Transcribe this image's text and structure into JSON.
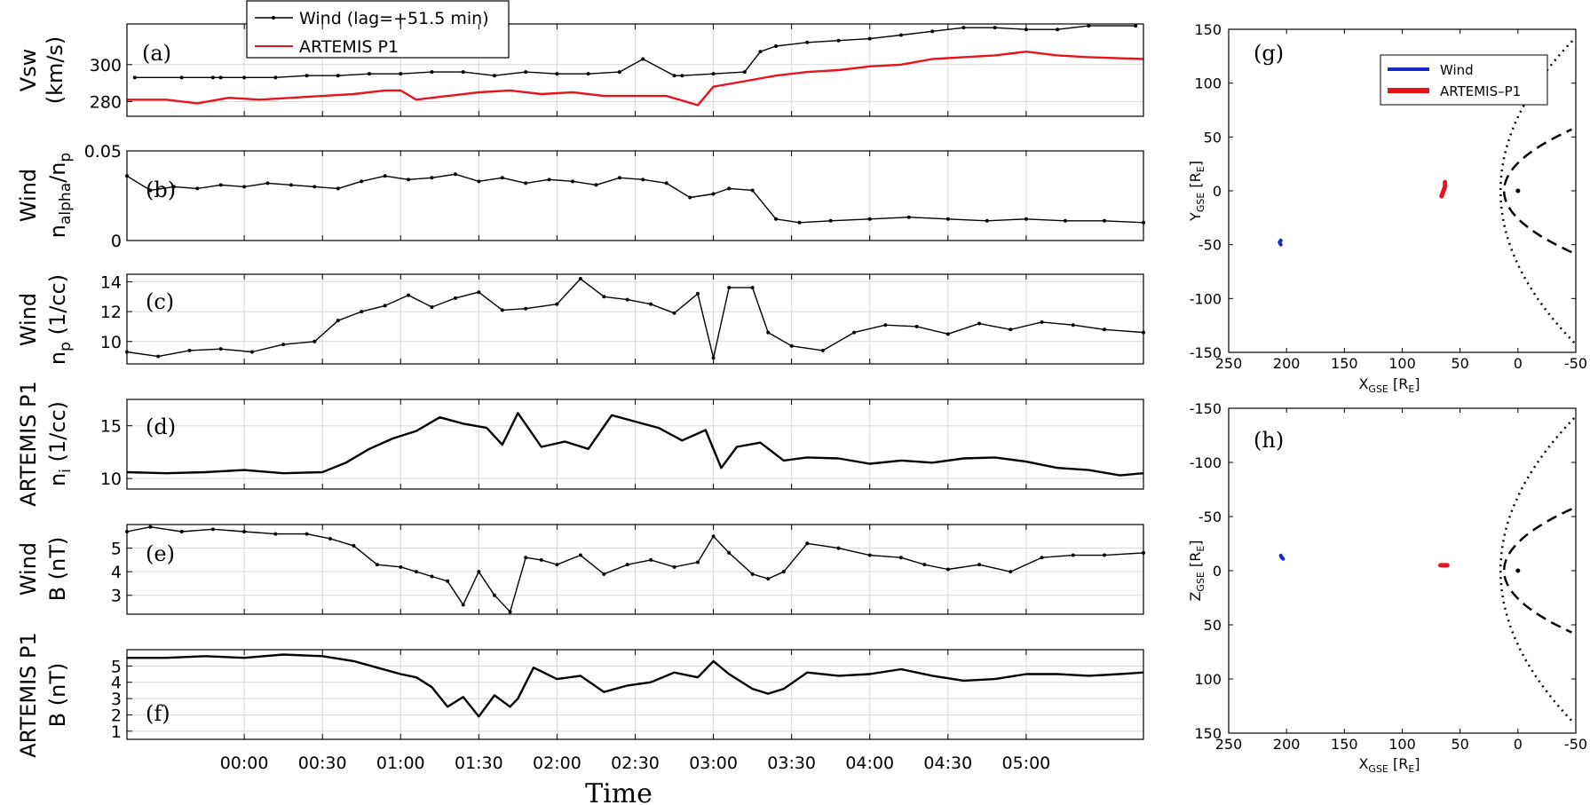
{
  "colors": {
    "wind": "#000000",
    "artemis": "#e8141c",
    "wind_orbit": "#1428c8",
    "artemis_orbit": "#e8141c"
  },
  "legend": {
    "wind": "Wind (lag=+51.5 min)",
    "artemis": "ARTEMIS P1"
  },
  "xlabel": "Time",
  "time_ticks": [
    "00:00",
    "00:30",
    "01:00",
    "01:30",
    "02:00",
    "02:30",
    "03:00",
    "03:30",
    "04:00",
    "04:30",
    "05:00"
  ],
  "panels": {
    "a": {
      "tag": "(a)",
      "ylabel_line1": "Vsw",
      "ylabel_line2": "(km/s)",
      "ticks": [
        "280",
        "300"
      ]
    },
    "b": {
      "tag": "(b)",
      "ylabel_line1": "Wind",
      "ylabel_line2": "n",
      "ylabel_sub1": "alpha",
      "ylabel_mid": "/n",
      "ylabel_sub2": "p",
      "ticks": [
        "0",
        "0.05"
      ]
    },
    "c": {
      "tag": "(c)",
      "ylabel_line1": "Wind",
      "ylabel_line2": "n",
      "ylabel_sub": "p",
      "ylabel_unit": " (1/cc)",
      "ticks": [
        "10",
        "12",
        "14"
      ]
    },
    "d": {
      "tag": "(d)",
      "ylabel_line1": "ARTEMIS P1",
      "ylabel_line2": "n",
      "ylabel_sub": "i",
      "ylabel_unit": " (1/cc)",
      "ticks": [
        "10",
        "15"
      ]
    },
    "e": {
      "tag": "(e)",
      "ylabel_line1": "Wind",
      "ylabel_line2": "B (nT)",
      "ticks": [
        "3",
        "4",
        "5"
      ]
    },
    "f": {
      "tag": "(f)",
      "ylabel_line1": "ARTEMIS P1",
      "ylabel_line2": "B (nT)",
      "ticks": [
        "1",
        "2",
        "3",
        "4",
        "5"
      ]
    },
    "g": {
      "tag": "(g)",
      "xticks": [
        "250",
        "200",
        "150",
        "100",
        "50",
        "0",
        "-50"
      ],
      "yticks": [
        "-150",
        "-100",
        "-50",
        "0",
        "50",
        "100",
        "150"
      ],
      "xlabel_main": "X",
      "xlabel_sub": "GSE",
      "xlabel_unit": " [R",
      "xlabel_unit_sub": "E",
      "xlabel_close": "]",
      "ylabel_main": "Y",
      "ylabel_sub": "GSE",
      "ylabel_unit": " [R",
      "ylabel_unit_sub": "E",
      "ylabel_close": "]",
      "legend_wind": "Wind",
      "legend_artemis": "ARTEMIS–P1"
    },
    "h": {
      "tag": "(h)",
      "xticks": [
        "250",
        "200",
        "150",
        "100",
        "50",
        "0",
        "-50"
      ],
      "yticks": [
        "150",
        "100",
        "50",
        "0",
        "-50",
        "-100",
        "-150"
      ],
      "xlabel_main": "X",
      "xlabel_sub": "GSE",
      "xlabel_unit": " [R",
      "xlabel_unit_sub": "E",
      "xlabel_close": "]",
      "ylabel_main": "Z",
      "ylabel_sub": "GSE",
      "ylabel_unit": " [R",
      "ylabel_unit_sub": "E",
      "ylabel_close": "]"
    }
  },
  "chart_data": [
    {
      "type": "line",
      "panel": "a",
      "ylim": [
        272,
        322
      ],
      "xlim": [
        -0.75,
        5.75
      ],
      "series": [
        {
          "name": "Wind (lag=+51.5 min)",
          "x": [
            -0.7,
            -0.4,
            -0.2,
            -0.15,
            0.0,
            0.2,
            0.4,
            0.6,
            0.8,
            1.0,
            1.2,
            1.4,
            1.6,
            1.8,
            2.0,
            2.2,
            2.4,
            2.55,
            2.75,
            2.8,
            3.0,
            3.2,
            3.3,
            3.4,
            3.6,
            3.8,
            4.0,
            4.2,
            4.4,
            4.6,
            4.8,
            5.0,
            5.2,
            5.4,
            5.7
          ],
          "y": [
            293,
            293,
            293,
            293,
            293,
            293,
            294,
            294,
            295,
            295,
            296,
            296,
            294,
            296,
            295,
            295,
            296,
            303,
            294,
            294,
            295,
            296,
            307,
            310,
            312,
            313,
            314,
            316,
            318,
            320,
            320,
            319,
            319,
            321,
            321
          ]
        },
        {
          "name": "ARTEMIS P1",
          "x": [
            -0.75,
            -0.5,
            -0.3,
            -0.1,
            0.1,
            0.3,
            0.5,
            0.7,
            0.9,
            1.0,
            1.1,
            1.3,
            1.5,
            1.7,
            1.9,
            2.1,
            2.3,
            2.5,
            2.7,
            2.9,
            3.0,
            3.2,
            3.4,
            3.6,
            3.8,
            4.0,
            4.2,
            4.4,
            4.6,
            4.8,
            5.0,
            5.2,
            5.4,
            5.75
          ],
          "y": [
            281,
            281,
            279,
            282,
            281,
            282,
            283,
            284,
            286,
            286,
            281,
            283,
            285,
            286,
            284,
            285,
            283,
            283,
            283,
            278,
            288,
            291,
            294,
            296,
            297,
            299,
            300,
            303,
            304,
            305,
            307,
            305,
            304,
            303
          ]
        }
      ]
    },
    {
      "type": "line",
      "panel": "b",
      "ylim": [
        0,
        0.05
      ],
      "xlim": [
        -0.75,
        5.75
      ],
      "series": [
        {
          "x": [
            -0.75,
            -0.6,
            -0.45,
            -0.3,
            -0.15,
            0.0,
            0.15,
            0.3,
            0.45,
            0.6,
            0.75,
            0.9,
            1.05,
            1.2,
            1.35,
            1.5,
            1.65,
            1.8,
            1.95,
            2.1,
            2.25,
            2.4,
            2.55,
            2.7,
            2.85,
            3.0,
            3.1,
            3.25,
            3.4,
            3.55,
            3.75,
            4.0,
            4.25,
            4.5,
            4.75,
            5.0,
            5.25,
            5.5,
            5.75
          ],
          "y": [
            0.036,
            0.028,
            0.03,
            0.029,
            0.031,
            0.03,
            0.032,
            0.031,
            0.03,
            0.029,
            0.033,
            0.036,
            0.034,
            0.035,
            0.037,
            0.033,
            0.035,
            0.032,
            0.034,
            0.033,
            0.031,
            0.035,
            0.034,
            0.032,
            0.024,
            0.026,
            0.029,
            0.028,
            0.012,
            0.01,
            0.011,
            0.012,
            0.013,
            0.012,
            0.011,
            0.012,
            0.011,
            0.011,
            0.01
          ]
        }
      ]
    },
    {
      "type": "line",
      "panel": "c",
      "ylim": [
        8.5,
        14.5
      ],
      "xlim": [
        -0.75,
        5.75
      ],
      "series": [
        {
          "x": [
            -0.75,
            -0.55,
            -0.35,
            -0.15,
            0.05,
            0.25,
            0.45,
            0.6,
            0.75,
            0.9,
            1.05,
            1.2,
            1.35,
            1.5,
            1.65,
            1.8,
            2.0,
            2.15,
            2.3,
            2.45,
            2.6,
            2.75,
            2.9,
            3.0,
            3.1,
            3.25,
            3.35,
            3.5,
            3.7,
            3.9,
            4.1,
            4.3,
            4.5,
            4.7,
            4.9,
            5.1,
            5.3,
            5.5,
            5.75
          ],
          "y": [
            9.3,
            9.0,
            9.4,
            9.5,
            9.3,
            9.8,
            10.0,
            11.4,
            12.0,
            12.4,
            13.1,
            12.3,
            12.9,
            13.3,
            12.1,
            12.2,
            12.5,
            14.2,
            13.0,
            12.8,
            12.5,
            11.9,
            13.2,
            8.9,
            13.6,
            13.6,
            10.6,
            9.7,
            9.4,
            10.6,
            11.1,
            11.0,
            10.5,
            11.2,
            10.8,
            11.3,
            11.1,
            10.8,
            10.6
          ]
        }
      ]
    },
    {
      "type": "line",
      "panel": "d",
      "ylim": [
        9,
        17.5
      ],
      "xlim": [
        -0.75,
        5.75
      ],
      "series": [
        {
          "x": [
            -0.75,
            -0.5,
            -0.25,
            0.0,
            0.25,
            0.5,
            0.65,
            0.8,
            0.95,
            1.1,
            1.25,
            1.4,
            1.55,
            1.65,
            1.75,
            1.9,
            2.05,
            2.2,
            2.35,
            2.5,
            2.65,
            2.8,
            2.95,
            3.05,
            3.15,
            3.3,
            3.45,
            3.6,
            3.8,
            4.0,
            4.2,
            4.4,
            4.6,
            4.8,
            5.0,
            5.2,
            5.4,
            5.6,
            5.75
          ],
          "y": [
            10.6,
            10.5,
            10.6,
            10.8,
            10.5,
            10.6,
            11.5,
            12.8,
            13.8,
            14.5,
            15.8,
            15.2,
            14.8,
            13.2,
            16.2,
            13.0,
            13.5,
            12.8,
            16.0,
            15.4,
            14.8,
            13.6,
            14.6,
            11.0,
            13.0,
            13.4,
            11.7,
            12.0,
            11.9,
            11.4,
            11.7,
            11.5,
            11.9,
            12.0,
            11.6,
            11.0,
            10.8,
            10.3,
            10.5
          ]
        }
      ]
    },
    {
      "type": "line",
      "panel": "e",
      "ylim": [
        2.2,
        6.0
      ],
      "xlim": [
        -0.75,
        5.75
      ],
      "series": [
        {
          "x": [
            -0.75,
            -0.6,
            -0.4,
            -0.2,
            0.0,
            0.2,
            0.4,
            0.55,
            0.7,
            0.85,
            1.0,
            1.1,
            1.2,
            1.3,
            1.4,
            1.5,
            1.6,
            1.7,
            1.8,
            1.9,
            2.0,
            2.15,
            2.3,
            2.45,
            2.6,
            2.75,
            2.9,
            3.0,
            3.1,
            3.25,
            3.35,
            3.45,
            3.6,
            3.8,
            4.0,
            4.2,
            4.35,
            4.5,
            4.7,
            4.9,
            5.1,
            5.3,
            5.5,
            5.75
          ],
          "y": [
            5.7,
            5.9,
            5.7,
            5.8,
            5.7,
            5.6,
            5.6,
            5.4,
            5.1,
            4.3,
            4.2,
            4.0,
            3.8,
            3.6,
            2.6,
            4.0,
            3.0,
            2.3,
            4.6,
            4.5,
            4.3,
            4.7,
            3.9,
            4.3,
            4.5,
            4.2,
            4.4,
            5.5,
            4.8,
            3.9,
            3.7,
            4.0,
            5.2,
            5.0,
            4.7,
            4.6,
            4.3,
            4.1,
            4.3,
            4.0,
            4.6,
            4.7,
            4.7,
            4.8
          ]
        }
      ]
    },
    {
      "type": "line",
      "panel": "f",
      "ylim": [
        0.5,
        6.0
      ],
      "xlim": [
        -0.75,
        5.75
      ],
      "series": [
        {
          "x": [
            -0.75,
            -0.5,
            -0.25,
            0.0,
            0.25,
            0.5,
            0.7,
            0.85,
            1.0,
            1.1,
            1.2,
            1.3,
            1.4,
            1.5,
            1.6,
            1.7,
            1.75,
            1.85,
            2.0,
            2.15,
            2.3,
            2.45,
            2.6,
            2.75,
            2.9,
            3.0,
            3.1,
            3.25,
            3.35,
            3.45,
            3.6,
            3.8,
            4.0,
            4.2,
            4.4,
            4.6,
            4.8,
            5.0,
            5.2,
            5.4,
            5.6,
            5.75
          ],
          "y": [
            5.5,
            5.5,
            5.6,
            5.5,
            5.7,
            5.6,
            5.3,
            4.9,
            4.5,
            4.3,
            3.7,
            2.5,
            3.1,
            1.9,
            3.2,
            2.5,
            3.0,
            4.9,
            4.2,
            4.4,
            3.4,
            3.8,
            4.0,
            4.6,
            4.3,
            5.3,
            4.5,
            3.6,
            3.3,
            3.6,
            4.6,
            4.4,
            4.5,
            4.8,
            4.4,
            4.1,
            4.2,
            4.5,
            4.5,
            4.4,
            4.5,
            4.6
          ]
        }
      ]
    },
    {
      "type": "scatter",
      "panel": "g",
      "xlim": [
        250,
        -50
      ],
      "ylim": [
        150,
        -150
      ],
      "series": [
        {
          "name": "Wind",
          "x": [
            205,
            206,
            205
          ],
          "y": [
            -50,
            -48,
            -46
          ]
        },
        {
          "name": "ARTEMIS–P1",
          "x": [
            66,
            65,
            64,
            63,
            63
          ],
          "y": [
            -5,
            -2,
            1,
            4,
            8
          ]
        }
      ],
      "curves": [
        {
          "style": "dotted",
          "nose_x": 15,
          "spread": 0.0032
        },
        {
          "style": "dashed",
          "nose_x": 12,
          "spread": 0.018
        }
      ]
    },
    {
      "type": "scatter",
      "panel": "h",
      "xlim": [
        250,
        -50
      ],
      "ylim": [
        -150,
        150
      ],
      "series": [
        {
          "name": "Wind",
          "x": [
            205,
            204,
            203
          ],
          "y": [
            -14,
            -12,
            -11
          ]
        },
        {
          "name": "ARTEMIS–P1",
          "x": [
            67,
            64,
            61
          ],
          "y": [
            -5,
            -5,
            -5
          ]
        }
      ],
      "curves": [
        {
          "style": "dotted",
          "nose_x": 15,
          "spread": 0.0032
        },
        {
          "style": "dashed",
          "nose_x": 12,
          "spread": 0.018
        }
      ]
    }
  ]
}
